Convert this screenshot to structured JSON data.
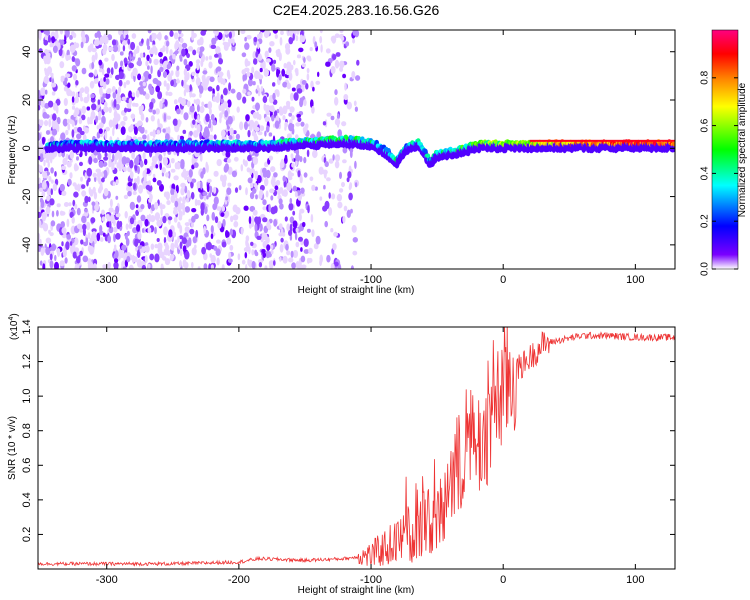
{
  "title": "C2E4.2025.283.16.56.G26",
  "chart_data": [
    {
      "type": "heatmap",
      "title": "C2E4.2025.283.16.56.G26",
      "xlabel": "Height of straight line (km)",
      "ylabel": "Frequency (Hz)",
      "xlim": [
        -352,
        130
      ],
      "ylim": [
        -50,
        49
      ],
      "xticks": [
        -300,
        -200,
        -100,
        0,
        100
      ],
      "xtick_labels": [
        "-300",
        "-200",
        "-100",
        "0",
        "100"
      ],
      "yticks": [
        -40,
        -20,
        0,
        20,
        40
      ],
      "ytick_labels": [
        "-40",
        "-20",
        "0",
        "20",
        "40"
      ],
      "colorbar": {
        "label": "Normalized spectral amplitude",
        "range": [
          0,
          1
        ],
        "ticks": [
          0.0,
          0.2,
          0.4,
          0.6,
          0.8
        ],
        "tick_labels": [
          "0.0",
          "0.2",
          "0.4",
          "0.6",
          "0.8"
        ],
        "colors": [
          "#ffffff",
          "#7a00ff",
          "#0000ff",
          "#00ffff",
          "#00ff00",
          "#ffff00",
          "#ff8000",
          "#ff0000",
          "#ff0080"
        ]
      },
      "ridge": {
        "x": [
          -345,
          -300,
          -205,
          -180,
          -150,
          -120,
          -100,
          -90,
          -80,
          -75,
          -65,
          -55,
          -50,
          -40,
          -30,
          -20,
          -10,
          0,
          20,
          50,
          100,
          130
        ],
        "frequency": [
          2,
          2,
          2,
          2,
          3,
          4,
          3,
          0,
          -5,
          0,
          3,
          -5,
          -2,
          -1,
          0,
          2,
          2,
          2,
          2,
          2,
          2,
          2
        ],
        "amplitude": [
          0.3,
          0.25,
          0.3,
          0.35,
          0.4,
          0.4,
          0.35,
          0.3,
          0.35,
          0.3,
          0.35,
          0.3,
          0.35,
          0.4,
          0.45,
          0.5,
          0.55,
          0.55,
          0.65,
          0.75,
          0.85,
          0.85
        ]
      },
      "diffuse_noise_region_x": [
        -352,
        -110
      ],
      "grid": false
    },
    {
      "type": "line",
      "xlabel": "Height of straight line (km)",
      "ylabel": "SNR (10 * v/v)",
      "exponent_label": "(x10",
      "exponent_sup": "4",
      "exponent_close": ")",
      "xlim": [
        -352,
        130
      ],
      "ylim": [
        0,
        1.4
      ],
      "xticks": [
        -300,
        -200,
        -100,
        0,
        100
      ],
      "xtick_labels": [
        "-300",
        "-200",
        "-100",
        "0",
        "100"
      ],
      "yticks": [
        0.2,
        0.4,
        0.6,
        0.8,
        1.0,
        1.2,
        1.4
      ],
      "ytick_labels": [
        "0.2",
        "0.4",
        "0.6",
        "0.8",
        "1.0",
        "1.2",
        "1.4"
      ],
      "color": "#ee3333",
      "series": [
        {
          "x": [
            -352,
            -300,
            -250,
            -200,
            -185,
            -150,
            -120,
            -100,
            -85,
            -70,
            -60,
            -50,
            -45,
            -40,
            -35,
            -30,
            -25,
            -20,
            -15,
            -10,
            -5,
            0,
            10,
            20,
            30,
            40,
            60,
            80,
            100,
            130
          ],
          "y": [
            0.03,
            0.03,
            0.03,
            0.04,
            0.06,
            0.05,
            0.06,
            0.08,
            0.14,
            0.2,
            0.26,
            0.25,
            0.4,
            0.5,
            0.55,
            0.6,
            0.65,
            0.72,
            0.75,
            0.85,
            0.95,
            1.05,
            1.15,
            1.22,
            1.3,
            1.32,
            1.35,
            1.35,
            1.34,
            1.34
          ]
        }
      ],
      "grid": false
    }
  ]
}
